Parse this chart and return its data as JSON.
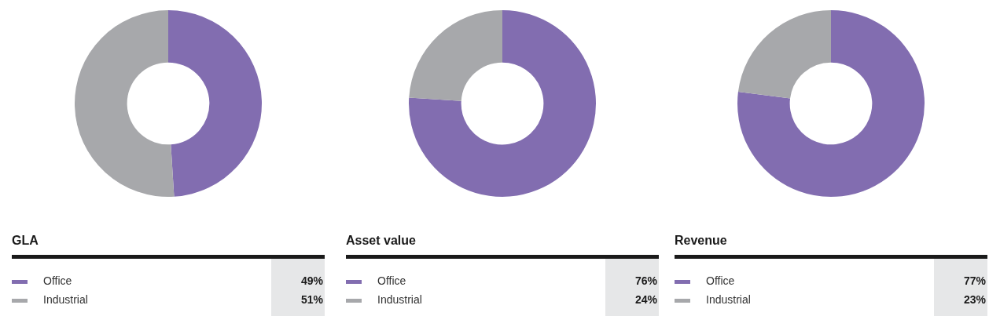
{
  "chart_data": [
    {
      "type": "donut",
      "title": "GLA",
      "categories": [
        "Office",
        "Industrial"
      ],
      "values": [
        49,
        51
      ],
      "colors": [
        "#826db0",
        "#a7a8ab"
      ],
      "value_labels": [
        "49%",
        "51%"
      ],
      "legend": "bottom"
    },
    {
      "type": "donut",
      "title": "Asset value",
      "categories": [
        "Office",
        "Industrial"
      ],
      "values": [
        76,
        24
      ],
      "colors": [
        "#826db0",
        "#a7a8ab"
      ],
      "value_labels": [
        "76%",
        "24%"
      ],
      "legend": "bottom"
    },
    {
      "type": "donut",
      "title": "Revenue",
      "categories": [
        "Office",
        "Industrial"
      ],
      "values": [
        77,
        23
      ],
      "colors": [
        "#826db0",
        "#a7a8ab"
      ],
      "value_labels": [
        "77%",
        "23%"
      ],
      "legend": "bottom"
    }
  ]
}
